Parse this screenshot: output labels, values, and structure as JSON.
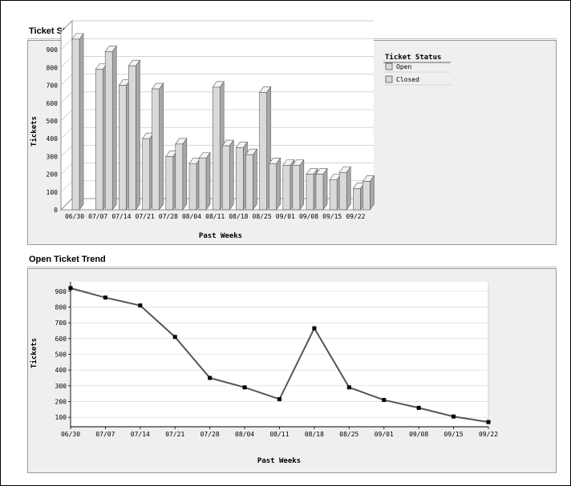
{
  "sections": {
    "state_changes_title": "Ticket State Changes",
    "open_trend_title": "Open Ticket Trend"
  },
  "chart_data": [
    {
      "type": "bar",
      "title": "Ticket State Changes",
      "xlabel": "Past Weeks",
      "ylabel": "Tickets",
      "ylim": [
        0,
        1000
      ],
      "yticks": [
        0,
        100,
        200,
        300,
        400,
        500,
        600,
        700,
        800,
        900
      ],
      "categories": [
        "06/30",
        "07/07",
        "07/14",
        "07/21",
        "07/28",
        "08/04",
        "08/11",
        "08/18",
        "08/25",
        "09/01",
        "09/08",
        "09/15",
        "09/22"
      ],
      "legend_title": "Ticket Status",
      "legend_position": "right",
      "bar_style": "3d",
      "bar_color": "#d9d9d9",
      "series": [
        {
          "name": "Open",
          "values": [
            960,
            790,
            700,
            400,
            300,
            260,
            690,
            350,
            660,
            250,
            200,
            170,
            120
          ]
        },
        {
          "name": "Closed",
          "values": [
            null,
            890,
            810,
            680,
            370,
            290,
            360,
            310,
            260,
            250,
            200,
            210,
            160
          ]
        }
      ]
    },
    {
      "type": "line",
      "title": "Open Ticket Trend",
      "xlabel": "Past Weeks",
      "ylabel": "Tickets",
      "ylim": [
        40,
        960
      ],
      "yticks": [
        100,
        200,
        300,
        400,
        500,
        600,
        700,
        800,
        900
      ],
      "x": [
        "06/30",
        "07/07",
        "07/14",
        "07/21",
        "07/28",
        "08/04",
        "08/11",
        "08/18",
        "08/25",
        "09/01",
        "09/08",
        "09/15",
        "09/22"
      ],
      "series": [
        {
          "values": [
            920,
            860,
            810,
            610,
            350,
            290,
            215,
            665,
            290,
            210,
            160,
            105,
            70
          ]
        }
      ],
      "line_color": "#555555",
      "marker": "square"
    }
  ]
}
